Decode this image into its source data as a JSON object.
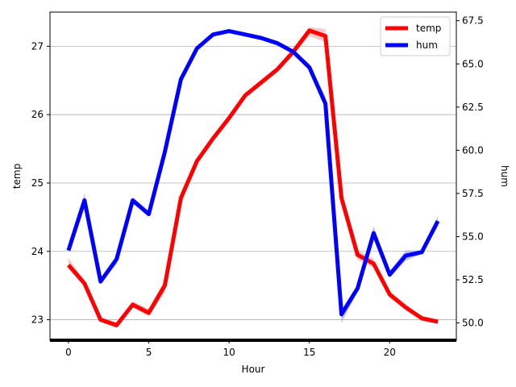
{
  "chart_data": {
    "type": "line",
    "xlabel": "Hour",
    "ylabel_left": "temp",
    "ylabel_right": "hum",
    "x": [
      0,
      1,
      2,
      3,
      4,
      5,
      6,
      7,
      8,
      9,
      10,
      11,
      12,
      13,
      14,
      15,
      16,
      17,
      18,
      19,
      20,
      21,
      22,
      23
    ],
    "xlim": [
      -1.15,
      24.15
    ],
    "xticks": [
      0,
      5,
      10,
      15,
      20
    ],
    "xtick_labels": [
      "0",
      "5",
      "10",
      "15",
      "20"
    ],
    "ylim_left": [
      22.7,
      27.5
    ],
    "yticks_left": [
      23,
      24,
      25,
      26,
      27
    ],
    "ytick_labels_left": [
      "23",
      "24",
      "25",
      "26",
      "27"
    ],
    "ylim_right": [
      49.0,
      68.0
    ],
    "yticks_right": [
      50.0,
      52.5,
      55.0,
      57.5,
      60.0,
      62.5,
      65.0,
      67.5
    ],
    "ytick_labels_right": [
      "50.0",
      "52.5",
      "55.0",
      "57.5",
      "60.0",
      "62.5",
      "65.0",
      "67.5"
    ],
    "grid": "horizontal (left axis)",
    "legend_position": "top-right",
    "series": [
      {
        "name": "temp",
        "axis": "left",
        "color": "#ff0000",
        "band_color": "#ff9999",
        "values": [
          23.8,
          23.53,
          23.0,
          22.92,
          23.22,
          23.1,
          23.5,
          24.78,
          25.32,
          25.65,
          25.95,
          26.28,
          26.47,
          26.66,
          26.92,
          27.23,
          27.15,
          24.78,
          23.95,
          23.82,
          23.37,
          23.18,
          23.02,
          22.97
        ],
        "band_low": [
          23.75,
          23.5,
          22.97,
          22.88,
          23.18,
          23.05,
          23.4,
          24.7,
          25.28,
          25.61,
          25.91,
          26.24,
          26.43,
          26.62,
          26.87,
          27.15,
          27.06,
          24.7,
          23.88,
          23.76,
          23.32,
          23.14,
          22.99,
          22.94
        ],
        "band_high": [
          23.9,
          23.58,
          23.04,
          22.96,
          23.27,
          23.16,
          23.58,
          24.85,
          25.36,
          25.69,
          25.99,
          26.32,
          26.51,
          26.7,
          26.97,
          27.28,
          27.25,
          24.86,
          24.02,
          23.89,
          23.42,
          23.22,
          23.06,
          23.01
        ]
      },
      {
        "name": "hum",
        "axis": "right",
        "color": "#0000ff",
        "band_color": "#9999ff",
        "values": [
          54.2,
          57.1,
          52.4,
          53.7,
          57.1,
          56.3,
          59.9,
          64.1,
          65.9,
          66.7,
          66.9,
          66.7,
          66.5,
          66.2,
          65.7,
          64.8,
          62.7,
          50.5,
          52.0,
          55.2,
          52.8,
          53.9,
          54.1,
          55.9
        ],
        "band_low": [
          54.1,
          56.8,
          52.3,
          53.4,
          56.9,
          56.2,
          59.7,
          63.9,
          65.8,
          66.6,
          66.8,
          66.6,
          66.4,
          66.1,
          65.6,
          64.6,
          62.4,
          50.0,
          51.8,
          54.9,
          52.6,
          53.6,
          54.0,
          55.6
        ],
        "band_high": [
          54.6,
          57.5,
          52.6,
          53.9,
          57.3,
          56.5,
          60.1,
          64.3,
          66.0,
          66.8,
          67.0,
          66.8,
          66.6,
          66.3,
          65.8,
          65.0,
          63.1,
          50.8,
          52.2,
          55.6,
          53.0,
          54.2,
          54.2,
          56.2
        ]
      }
    ]
  }
}
